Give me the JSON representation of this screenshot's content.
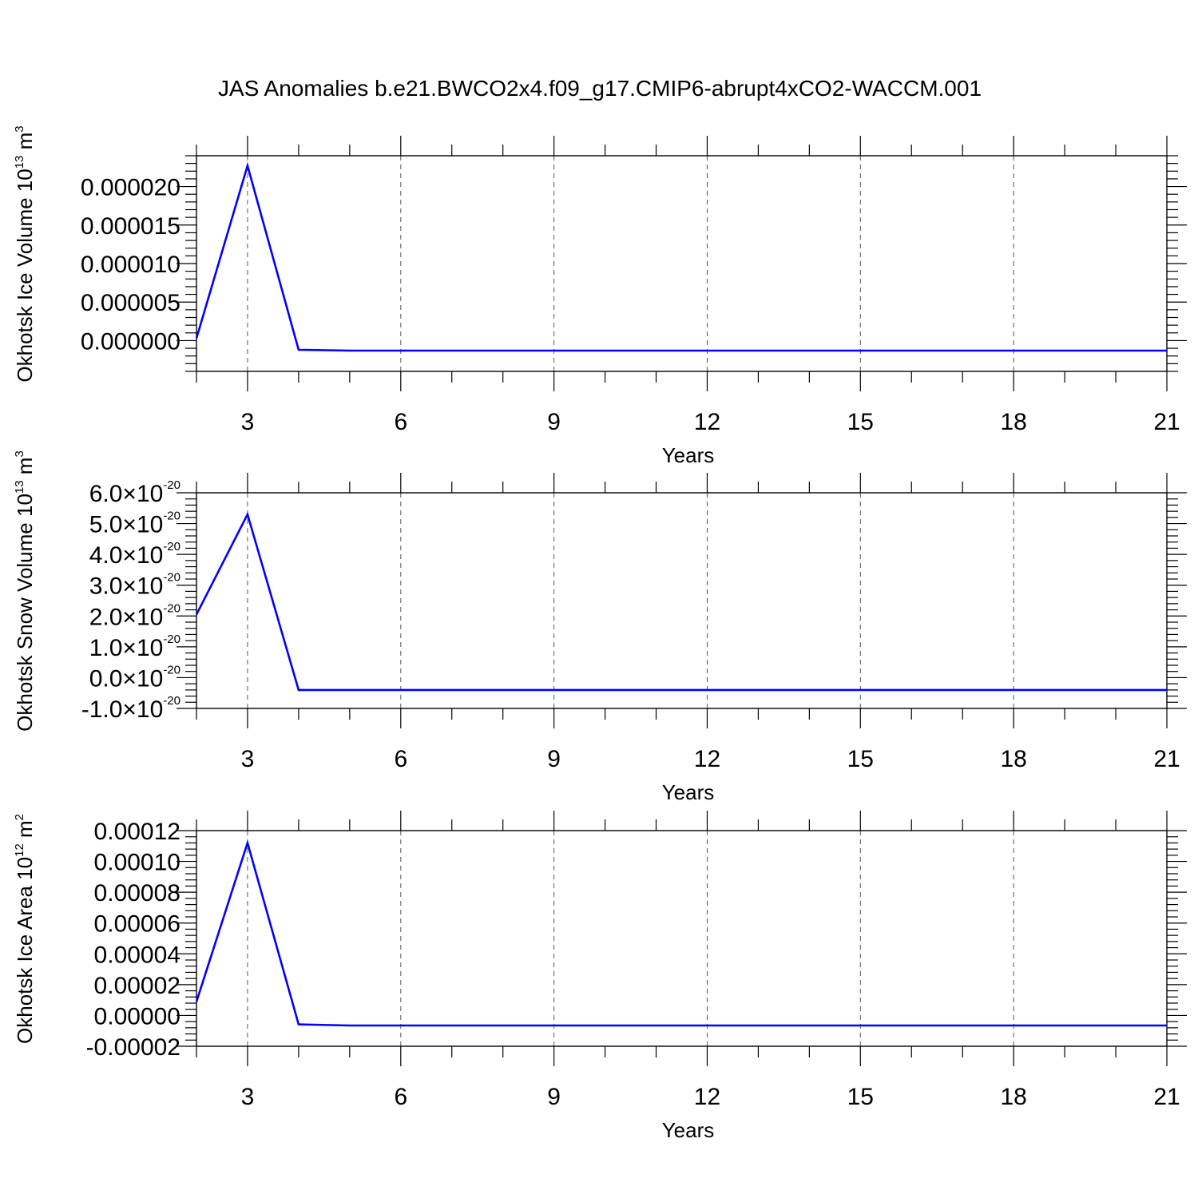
{
  "title": "JAS Anomalies b.e21.BWCO2x4.f09_g17.CMIP6-abrupt4xCO2-WACCM.001",
  "line_color": "#0000ff",
  "chart_data": [
    {
      "type": "line",
      "xlabel": "Years",
      "ylabel": {
        "main": "Okhotsk Ice Volume 10",
        "exp": "13",
        "unit": " m",
        "unit_exp": "3"
      },
      "xlim": [
        2,
        21
      ],
      "ylim": [
        -4e-06,
        2.4e-05
      ],
      "x_ticks": [
        3,
        6,
        9,
        12,
        15,
        18,
        21
      ],
      "x_tick_labels": [
        "3",
        "6",
        "9",
        "12",
        "15",
        "18",
        "21"
      ],
      "y_ticks": [
        0,
        5e-06,
        1e-05,
        1.5e-05,
        2e-05
      ],
      "y_tick_labels": [
        "0.000000",
        "0.000005",
        "0.000010",
        "0.000015",
        "0.000020"
      ],
      "grid": "vertical-dashed",
      "series": [
        {
          "x": [
            2,
            3,
            4,
            5,
            6,
            7,
            8,
            9,
            10,
            11,
            12,
            13,
            14,
            15,
            16,
            17,
            18,
            19,
            20,
            21
          ],
          "y": [
            3e-07,
            2.27e-05,
            -1.2e-06,
            -1.3e-06,
            -1.3e-06,
            -1.3e-06,
            -1.3e-06,
            -1.3e-06,
            -1.3e-06,
            -1.3e-06,
            -1.3e-06,
            -1.3e-06,
            -1.3e-06,
            -1.3e-06,
            -1.3e-06,
            -1.3e-06,
            -1.3e-06,
            -1.3e-06,
            -1.3e-06,
            -1.3e-06
          ]
        }
      ]
    },
    {
      "type": "line",
      "xlabel": "Years",
      "ylabel": {
        "main": "Okhotsk Snow Volume 10",
        "exp": "13",
        "unit": " m",
        "unit_exp": "3"
      },
      "xlim": [
        2,
        21
      ],
      "ylim": [
        -1e-20,
        6e-20
      ],
      "x_ticks": [
        3,
        6,
        9,
        12,
        15,
        18,
        21
      ],
      "x_tick_labels": [
        "3",
        "6",
        "9",
        "12",
        "15",
        "18",
        "21"
      ],
      "y_ticks": [
        -1e-20,
        0,
        1e-20,
        2e-20,
        3e-20,
        4e-20,
        5e-20,
        6e-20
      ],
      "y_tick_labels": [
        {
          "mant": "-1.0",
          "exp": "-20"
        },
        {
          "mant": "0.0",
          "exp": "-20"
        },
        {
          "mant": "1.0",
          "exp": "-20"
        },
        {
          "mant": "2.0",
          "exp": "-20"
        },
        {
          "mant": "3.0",
          "exp": "-20"
        },
        {
          "mant": "4.0",
          "exp": "-20"
        },
        {
          "mant": "5.0",
          "exp": "-20"
        },
        {
          "mant": "6.0",
          "exp": "-20"
        }
      ],
      "grid": "vertical-dashed",
      "series": [
        {
          "x": [
            2,
            3,
            4,
            5,
            6,
            7,
            8,
            9,
            10,
            11,
            12,
            13,
            14,
            15,
            16,
            17,
            18,
            19,
            20,
            21
          ],
          "y": [
            2.05e-20,
            5.3e-20,
            -4e-21,
            -4e-21,
            -4e-21,
            -4e-21,
            -4e-21,
            -4e-21,
            -4e-21,
            -4e-21,
            -4e-21,
            -4e-21,
            -4e-21,
            -4e-21,
            -4e-21,
            -4e-21,
            -4e-21,
            -4e-21,
            -4e-21,
            -4e-21
          ]
        }
      ]
    },
    {
      "type": "line",
      "xlabel": "Years",
      "ylabel": {
        "main": "Okhotsk Ice Area 10",
        "exp": "12",
        "unit": " m",
        "unit_exp": "2"
      },
      "xlim": [
        2,
        21
      ],
      "ylim": [
        -2e-05,
        0.00012
      ],
      "x_ticks": [
        3,
        6,
        9,
        12,
        15,
        18,
        21
      ],
      "x_tick_labels": [
        "3",
        "6",
        "9",
        "12",
        "15",
        "18",
        "21"
      ],
      "y_ticks": [
        -2e-05,
        0,
        2e-05,
        4e-05,
        6e-05,
        8e-05,
        0.0001,
        0.00012
      ],
      "y_tick_labels": [
        "-0.00002",
        "0.00000",
        "0.00002",
        "0.00004",
        "0.00006",
        "0.00008",
        "0.00010",
        "0.00012"
      ],
      "grid": "vertical-dashed",
      "series": [
        {
          "x": [
            2,
            3,
            4,
            5,
            6,
            7,
            8,
            9,
            10,
            11,
            12,
            13,
            14,
            15,
            16,
            17,
            18,
            19,
            20,
            21
          ],
          "y": [
            9e-06,
            0.000112,
            -5.8e-06,
            -6.5e-06,
            -6.5e-06,
            -6.5e-06,
            -6.5e-06,
            -6.5e-06,
            -6.5e-06,
            -6.5e-06,
            -6.5e-06,
            -6.5e-06,
            -6.5e-06,
            -6.5e-06,
            -6.5e-06,
            -6.5e-06,
            -6.5e-06,
            -6.5e-06,
            -6.5e-06,
            -6.5e-06
          ]
        }
      ]
    }
  ]
}
